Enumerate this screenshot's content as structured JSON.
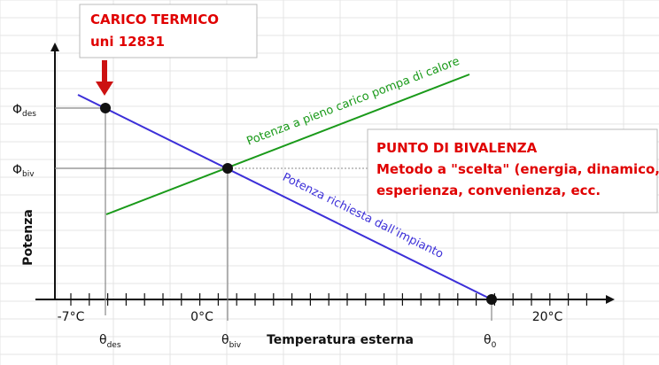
{
  "callouts": [
    {
      "lines": [
        "CARICO TERMICO",
        "uni 12831"
      ]
    },
    {
      "lines": [
        "PUNTO DI BIVALENZA",
        "Metodo a \"scelta\" (energia, dinamico,",
        "esperienza, convenienza, ecc."
      ]
    }
  ],
  "y_axis": {
    "label": "Potenza",
    "marks": [
      {
        "symbol": "Φ",
        "subscript": "des"
      },
      {
        "symbol": "Φ",
        "subscript": "biv"
      }
    ]
  },
  "x_axis": {
    "label": "Temperatura esterna",
    "temperatures": [
      "-7°C",
      "0°C",
      "20°C"
    ],
    "marks": [
      {
        "symbol": "θ",
        "subscript": "des"
      },
      {
        "symbol": "θ",
        "subscript": "biv"
      },
      {
        "symbol": "θ",
        "subscript": "0"
      }
    ]
  },
  "lines": [
    {
      "label": "Potenza a pieno carico pompa di calore"
    },
    {
      "label": "Potenza richiesta dall’impianto"
    }
  ]
}
